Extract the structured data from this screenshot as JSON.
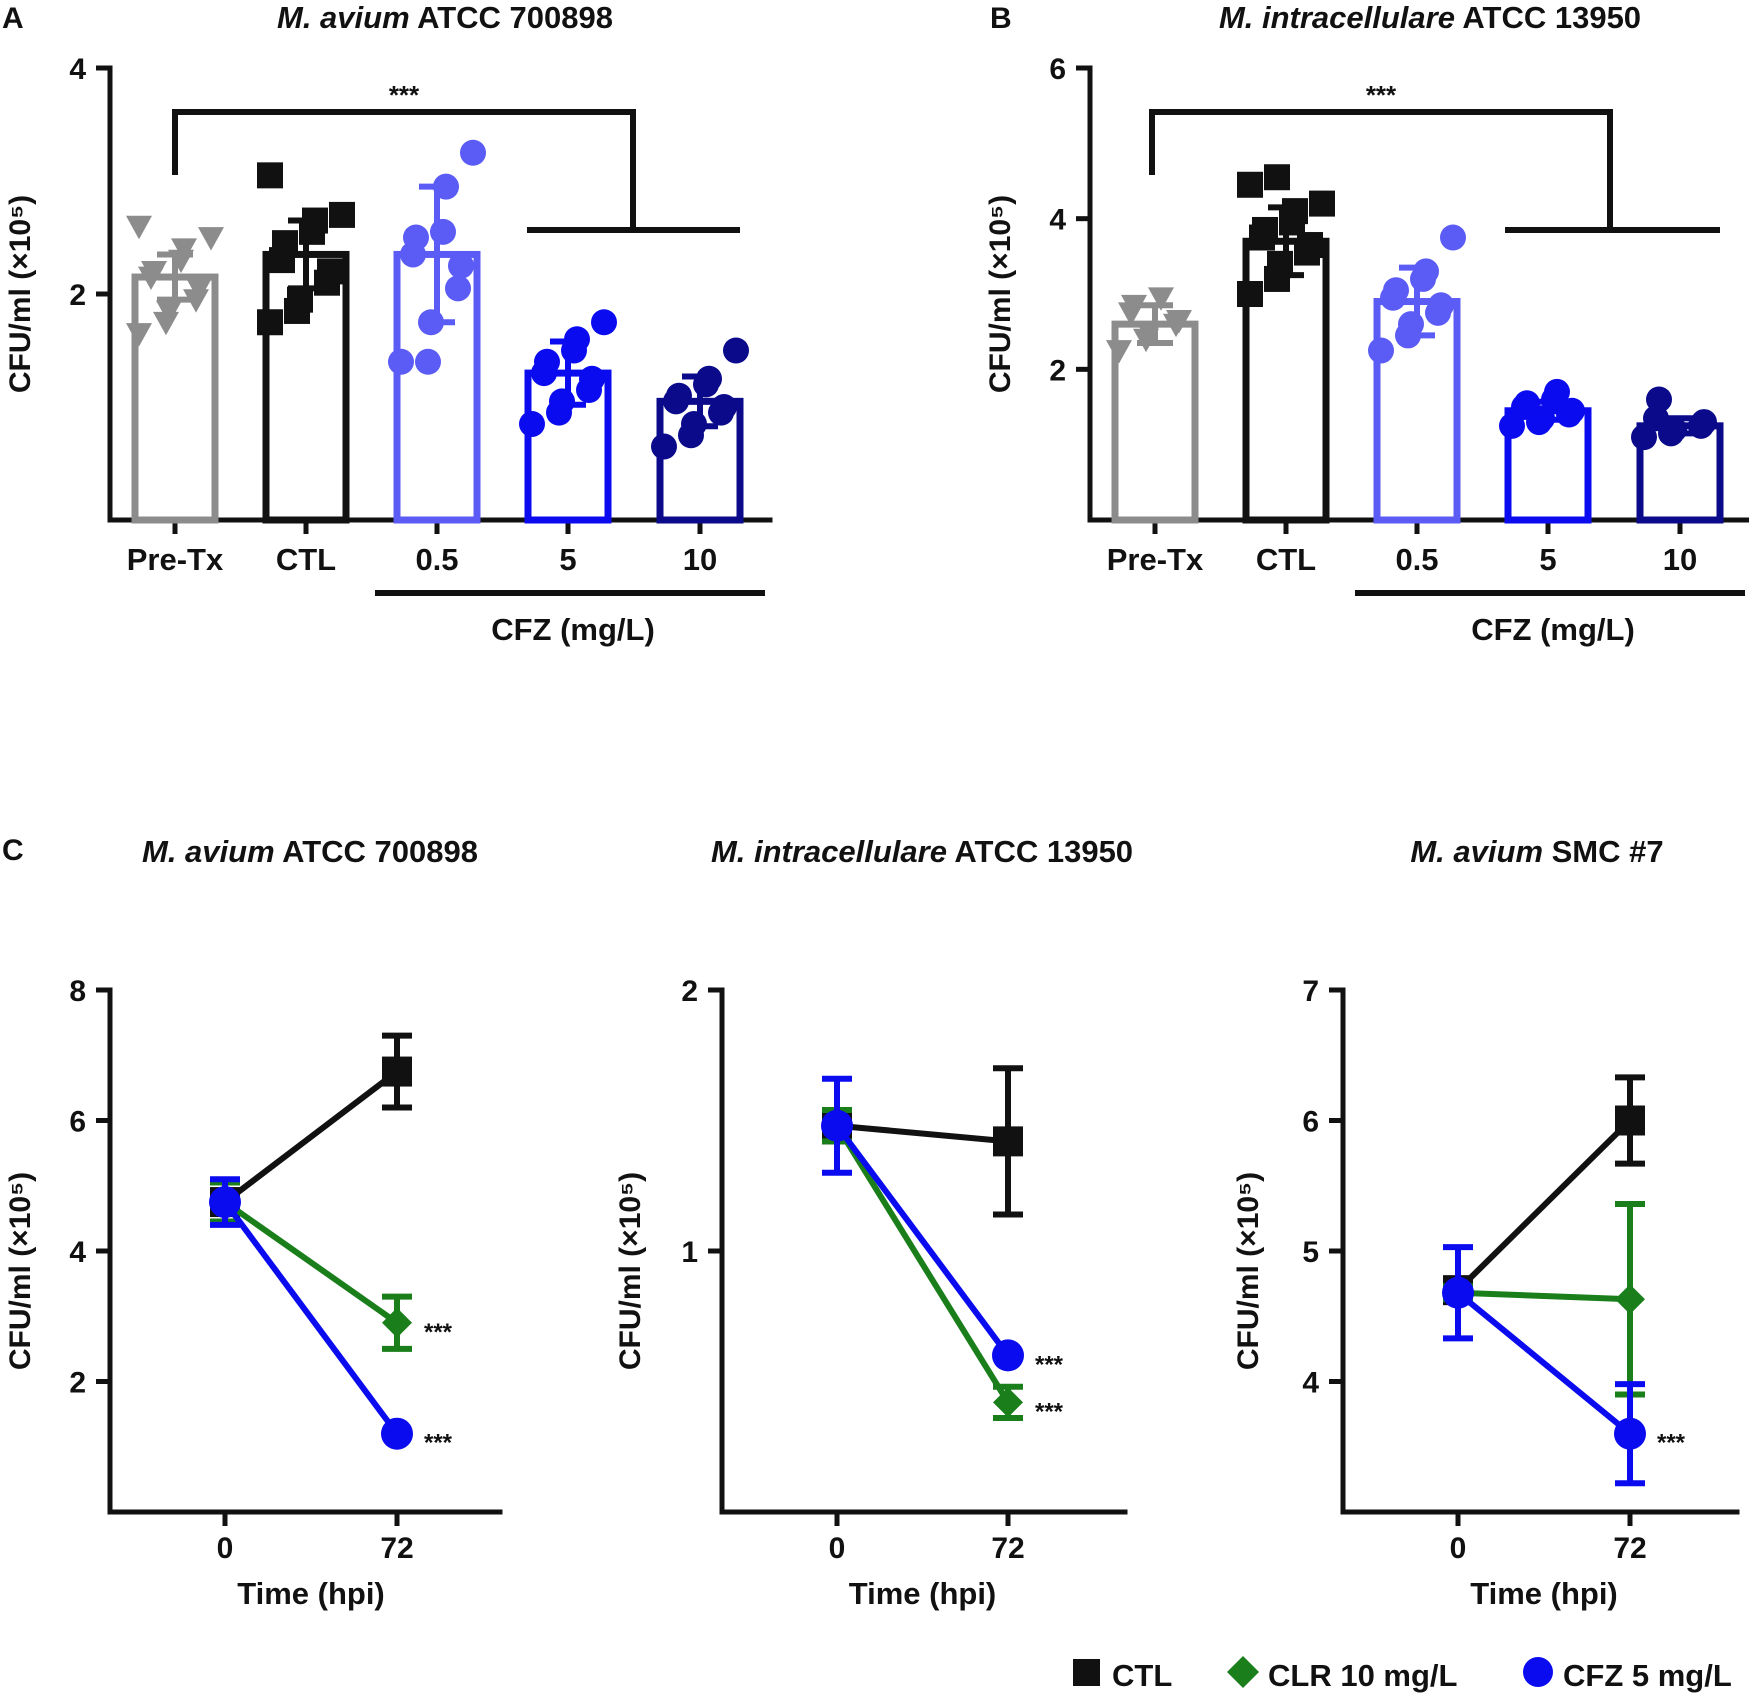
{
  "panels": {
    "A": {
      "label": "A",
      "title_italic": "M. avium",
      "title_rest": " ATCC 700898"
    },
    "B": {
      "label": "B",
      "title_italic": "M. intracellulare",
      "title_rest": " ATCC 13950"
    },
    "C": {
      "label": "C"
    }
  },
  "cfz_group_label": "CFZ (mg/L)",
  "significance": "***",
  "line_titles": [
    {
      "italic": "M. avium",
      "rest": " ATCC 700898"
    },
    {
      "italic": "M. intracellulare",
      "rest": " ATCC 13950"
    },
    {
      "italic": "M. avium",
      "rest": " SMC #7"
    }
  ],
  "legend": [
    {
      "label": "CTL",
      "color": "#111111",
      "marker": "square"
    },
    {
      "label": "CLR 10 mg/L",
      "color": "#1a7f1a",
      "marker": "diamond"
    },
    {
      "label": "CFZ 5 mg/L",
      "color": "#0b0bf0",
      "marker": "circle"
    }
  ],
  "chart_data": [
    {
      "type": "bar",
      "panel": "A",
      "title": "M. avium ATCC 700898",
      "ylabel": "CFU/ml (×10⁵)",
      "ylim": [
        0,
        4
      ],
      "yticks": [
        2,
        4
      ],
      "categories": [
        "Pre-Tx",
        "CTL",
        "0.5",
        "5",
        "10"
      ],
      "values": [
        2.15,
        2.35,
        2.35,
        1.3,
        1.05
      ],
      "errors": [
        0.2,
        0.3,
        0.6,
        0.28,
        0.22
      ],
      "colors": [
        "#8c8c8c",
        "#111111",
        "#5b5bf5",
        "#0b0bf0",
        "#0a0a8a"
      ],
      "markers": [
        "triangle-down",
        "square",
        "circle",
        "circle",
        "circle"
      ],
      "points": [
        [
          1.65,
          1.75,
          1.85,
          1.95,
          2.05,
          2.15,
          2.2,
          2.3,
          2.4,
          2.5,
          2.6
        ],
        [
          1.75,
          1.85,
          1.95,
          2.1,
          2.2,
          2.3,
          2.45,
          2.55,
          2.65,
          2.7,
          3.05
        ],
        [
          1.4,
          1.4,
          1.75,
          2.05,
          2.25,
          2.35,
          2.5,
          2.55,
          2.95,
          3.25
        ],
        [
          0.85,
          0.95,
          1.05,
          1.15,
          1.25,
          1.3,
          1.4,
          1.5,
          1.6,
          1.75
        ],
        [
          0.65,
          0.75,
          0.85,
          0.95,
          1.0,
          1.05,
          1.1,
          1.2,
          1.25,
          1.5
        ]
      ],
      "bracket_label": "***",
      "group_label": "CFZ (mg/L)"
    },
    {
      "type": "bar",
      "panel": "B",
      "title": "M. intracellulare ATCC 13950",
      "ylabel": "CFU/ml (×10⁵)",
      "ylim": [
        0,
        6
      ],
      "yticks": [
        2,
        4,
        6
      ],
      "categories": [
        "Pre-Tx",
        "CTL",
        "0.5",
        "5",
        "10"
      ],
      "values": [
        2.6,
        3.7,
        2.9,
        1.45,
        1.25
      ],
      "errors": [
        0.25,
        0.45,
        0.45,
        0.12,
        0.1
      ],
      "colors": [
        "#8c8c8c",
        "#111111",
        "#5b5bf5",
        "#0b0bf0",
        "#0a0a8a"
      ],
      "markers": [
        "triangle-down",
        "square",
        "circle",
        "circle",
        "circle"
      ],
      "points": [
        [
          2.25,
          2.4,
          2.5,
          2.6,
          2.65,
          2.75,
          2.85,
          2.95
        ],
        [
          3.0,
          3.2,
          3.4,
          3.55,
          3.65,
          3.75,
          3.85,
          3.95,
          4.1,
          4.2,
          4.45,
          4.55
        ],
        [
          2.25,
          2.45,
          2.6,
          2.75,
          2.85,
          2.95,
          3.05,
          3.2,
          3.3,
          3.75
        ],
        [
          1.25,
          1.3,
          1.35,
          1.4,
          1.45,
          1.5,
          1.55,
          1.6,
          1.7
        ],
        [
          1.1,
          1.15,
          1.2,
          1.25,
          1.3,
          1.35,
          1.6
        ]
      ],
      "bracket_label": "***",
      "group_label": "CFZ (mg/L)"
    },
    {
      "type": "line",
      "panel": "C1",
      "title": "M. avium ATCC 700898",
      "xlabel": "Time (hpi)",
      "ylabel": "CFU/ml (×10⁵)",
      "x": [
        0,
        72
      ],
      "ylim": [
        0,
        8
      ],
      "yticks": [
        2,
        4,
        6,
        8
      ],
      "series": [
        {
          "name": "CTL",
          "values": [
            4.75,
            6.75
          ],
          "errors": [
            0.3,
            0.55
          ],
          "sig": ""
        },
        {
          "name": "CLR 10 mg/L",
          "values": [
            4.75,
            2.9
          ],
          "errors": [
            0.3,
            0.4
          ],
          "sig": "***"
        },
        {
          "name": "CFZ 5 mg/L",
          "values": [
            4.75,
            1.2
          ],
          "errors": [
            0.35,
            0.0
          ],
          "sig": "***"
        }
      ]
    },
    {
      "type": "line",
      "panel": "C2",
      "title": "M. intracellulare ATCC 13950",
      "xlabel": "Time (hpi)",
      "ylabel": "CFU/ml (×10⁵)",
      "x": [
        0,
        72
      ],
      "ylim": [
        0,
        2
      ],
      "yticks": [
        1,
        2
      ],
      "series": [
        {
          "name": "CTL",
          "values": [
            1.48,
            1.42
          ],
          "errors": [
            0.06,
            0.28
          ],
          "sig": ""
        },
        {
          "name": "CLR 10 mg/L",
          "values": [
            1.48,
            0.42
          ],
          "errors": [
            0.06,
            0.06
          ],
          "sig": "***"
        },
        {
          "name": "CFZ 5 mg/L",
          "values": [
            1.48,
            0.6
          ],
          "errors": [
            0.18,
            0.0
          ],
          "sig": "***"
        }
      ]
    },
    {
      "type": "line",
      "panel": "C3",
      "title": "M. avium SMC #7",
      "xlabel": "Time (hpi)",
      "ylabel": "CFU/ml (×10⁵)",
      "x": [
        0,
        72
      ],
      "ylim": [
        3,
        7
      ],
      "yticks": [
        4,
        5,
        6,
        7
      ],
      "series": [
        {
          "name": "CTL",
          "values": [
            4.7,
            6.0
          ],
          "errors": [
            0.05,
            0.33
          ],
          "sig": ""
        },
        {
          "name": "CLR 10 mg/L",
          "values": [
            4.68,
            4.63
          ],
          "errors": [
            0.05,
            0.73
          ],
          "sig": ""
        },
        {
          "name": "CFZ 5 mg/L",
          "values": [
            4.68,
            3.6
          ],
          "errors": [
            0.35,
            0.38
          ],
          "sig": "***"
        }
      ]
    }
  ]
}
